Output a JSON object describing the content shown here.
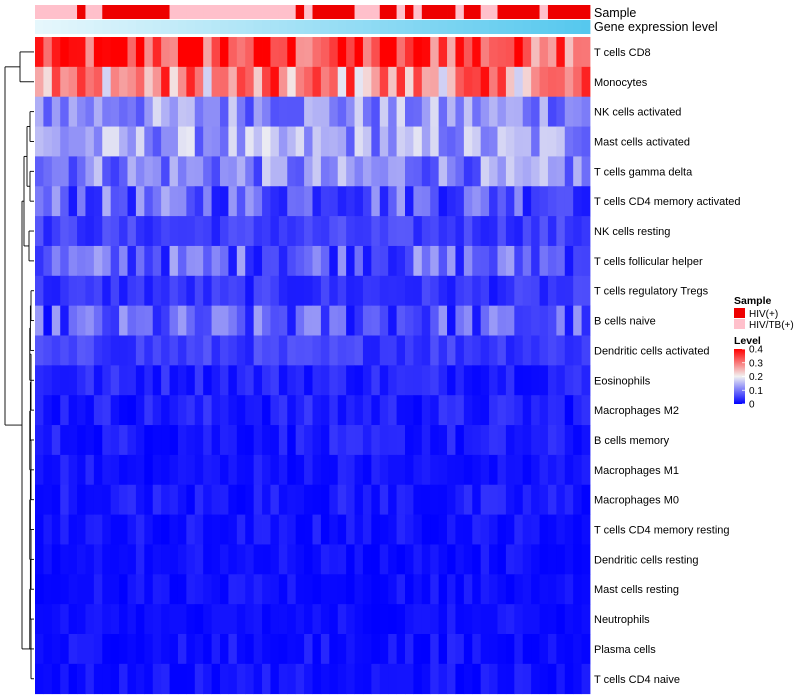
{
  "chart_data": {
    "type": "heatmap",
    "annotation_tracks": [
      {
        "label": "Sample"
      },
      {
        "label": "Gene expression level"
      }
    ],
    "sample_groups": "pppppSPpSSSSSSSSpppppppppppppppSpSSSSSpppSSpSpSSSSpSSppSSSSSpSSSSS",
    "group_colors": {
      "S": "#ee0000",
      "p": "#ffc0cb"
    },
    "gene_expression_colors": {
      "low": "#e6f7fc",
      "high": "#56c8ee"
    },
    "rows": [
      "T cells CD8",
      "Monocytes",
      "NK cells activated",
      "Mast cells activated",
      "T cells gamma delta",
      "T cells CD4 memory activated",
      "NK cells resting",
      "T cells follicular helper",
      "T cells regulatory  Tregs",
      "B cells naive",
      "Dendritic cells activated",
      "Eosinophils",
      "Macrophages M2",
      "B cells memory",
      "Macrophages M1",
      "Macrophages M0",
      "T cells CD4 memory resting",
      "Dendritic cells resting",
      "Mast cells resting",
      "Neutrophils",
      "Plasma cells",
      "T cells CD4 naive"
    ],
    "n_columns": 66,
    "row_levels": [
      0.35,
      0.28,
      0.12,
      0.13,
      0.11,
      0.08,
      0.05,
      0.08,
      0.04,
      0.07,
      0.05,
      0.03,
      0.025,
      0.02,
      0.012,
      0.018,
      0.01,
      0.006,
      0.004,
      0.003,
      0.01,
      0.008
    ],
    "level_scale": {
      "min": 0,
      "mid": 0.2,
      "max": 0.4,
      "low_color": "#0000ff",
      "mid_color": "#f2f2f2",
      "high_color": "#ff0000"
    },
    "legend": {
      "sample_title": "Sample",
      "sample_items": [
        {
          "label": "HIV(+)",
          "color": "#ee0000"
        },
        {
          "label": "HIV/TB(+)",
          "color": "#ffc0cb"
        }
      ],
      "level_title": "Level",
      "level_ticks": [
        {
          "value": 0.4,
          "label": "0.4"
        },
        {
          "value": 0.3,
          "label": "0.3"
        },
        {
          "value": 0.2,
          "label": "0.2"
        },
        {
          "value": 0.1,
          "label": "0.1"
        },
        {
          "value": 0,
          "label": "0"
        }
      ]
    },
    "dendrogram": "rows clustered (hierarchical)"
  }
}
